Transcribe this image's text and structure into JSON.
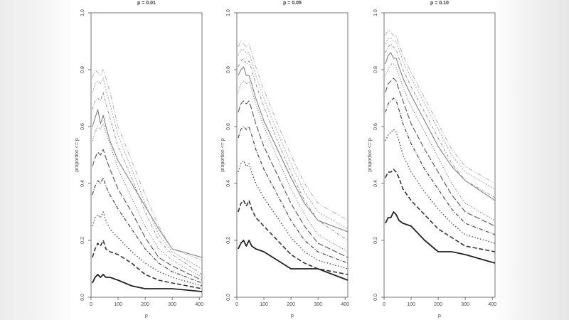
{
  "chart_data": [
    {
      "type": "line",
      "title": "p = 0.01",
      "xlabel": "p",
      "ylabel": "proportion <= p",
      "xlim": [
        0,
        410
      ],
      "ylim": [
        0,
        1
      ],
      "xticks": [
        "0",
        "100",
        "200",
        "300",
        "400"
      ],
      "yticks": [
        "0.0",
        "0.2",
        "0.4",
        "0.6",
        "0.8",
        "1.0"
      ],
      "grid": false,
      "series": [
        {
          "x": [
            5,
            15,
            25,
            35,
            45,
            55,
            70,
            100,
            150,
            200,
            250,
            300,
            410
          ],
          "y": [
            0.05,
            0.07,
            0.08,
            0.07,
            0.08,
            0.07,
            0.07,
            0.06,
            0.04,
            0.03,
            0.03,
            0.03,
            0.02
          ]
        },
        {
          "x": [
            5,
            15,
            25,
            35,
            45,
            55,
            70,
            100,
            150,
            200,
            250,
            300,
            410
          ],
          "y": [
            0.14,
            0.17,
            0.19,
            0.18,
            0.2,
            0.17,
            0.16,
            0.15,
            0.12,
            0.08,
            0.06,
            0.05,
            0.03
          ]
        },
        {
          "x": [
            5,
            15,
            25,
            35,
            45,
            55,
            70,
            100,
            150,
            200,
            250,
            300,
            410
          ],
          "y": [
            0.25,
            0.28,
            0.29,
            0.28,
            0.3,
            0.27,
            0.24,
            0.21,
            0.16,
            0.12,
            0.09,
            0.07,
            0.04
          ]
        },
        {
          "x": [
            5,
            15,
            25,
            35,
            45,
            55,
            70,
            100,
            150,
            200,
            250,
            300,
            410
          ],
          "y": [
            0.36,
            0.39,
            0.41,
            0.4,
            0.42,
            0.39,
            0.36,
            0.31,
            0.24,
            0.17,
            0.12,
            0.09,
            0.05
          ]
        },
        {
          "x": [
            5,
            15,
            25,
            35,
            45,
            55,
            70,
            100,
            150,
            200,
            250,
            300,
            410
          ],
          "y": [
            0.46,
            0.49,
            0.51,
            0.5,
            0.52,
            0.49,
            0.45,
            0.38,
            0.3,
            0.21,
            0.14,
            0.11,
            0.06
          ]
        },
        {
          "x": [
            5,
            15,
            25,
            35,
            45,
            55,
            70,
            100,
            150,
            200,
            250,
            300,
            410
          ],
          "y": [
            0.55,
            0.58,
            0.6,
            0.59,
            0.61,
            0.58,
            0.54,
            0.45,
            0.35,
            0.25,
            0.17,
            0.13,
            0.07
          ]
        },
        {
          "x": [
            5,
            15,
            25,
            35,
            45,
            55,
            70,
            100,
            150,
            200,
            250,
            300,
            410
          ],
          "y": [
            0.6,
            0.63,
            0.66,
            0.61,
            0.64,
            0.6,
            0.55,
            0.48,
            0.4,
            0.32,
            0.24,
            0.17,
            0.14
          ]
        },
        {
          "x": [
            5,
            15,
            25,
            35,
            45,
            55,
            70,
            100,
            150,
            200,
            250,
            300,
            410
          ],
          "y": [
            0.66,
            0.69,
            0.7,
            0.69,
            0.72,
            0.68,
            0.63,
            0.53,
            0.42,
            0.3,
            0.2,
            0.15,
            0.08
          ]
        },
        {
          "x": [
            5,
            15,
            25,
            35,
            45,
            55,
            70,
            100,
            150,
            200,
            250,
            300,
            410
          ],
          "y": [
            0.72,
            0.75,
            0.76,
            0.75,
            0.77,
            0.73,
            0.68,
            0.57,
            0.45,
            0.33,
            0.22,
            0.16,
            0.1
          ]
        },
        {
          "x": [
            5,
            15,
            25,
            35,
            45,
            55,
            70,
            100,
            150,
            200,
            250,
            300,
            410
          ],
          "y": [
            0.77,
            0.8,
            0.79,
            0.78,
            0.8,
            0.77,
            0.72,
            0.6,
            0.48,
            0.36,
            0.25,
            0.17,
            0.13
          ]
        }
      ]
    },
    {
      "type": "line",
      "title": "p = 0.05",
      "xlabel": "p",
      "ylabel": "proportion <= p",
      "xlim": [
        0,
        410
      ],
      "ylim": [
        0,
        1
      ],
      "xticks": [
        "0",
        "100",
        "200",
        "300",
        "400"
      ],
      "yticks": [
        "0.0",
        "0.2",
        "0.4",
        "0.6",
        "0.8",
        "1.0"
      ],
      "grid": false,
      "series": [
        {
          "x": [
            5,
            15,
            25,
            35,
            45,
            55,
            70,
            100,
            150,
            200,
            250,
            300,
            410
          ],
          "y": [
            0.17,
            0.19,
            0.2,
            0.18,
            0.2,
            0.18,
            0.17,
            0.16,
            0.13,
            0.1,
            0.1,
            0.1,
            0.06
          ]
        },
        {
          "x": [
            5,
            15,
            25,
            35,
            45,
            55,
            70,
            100,
            150,
            200,
            250,
            300,
            410
          ],
          "y": [
            0.3,
            0.33,
            0.34,
            0.32,
            0.34,
            0.31,
            0.28,
            0.25,
            0.2,
            0.15,
            0.12,
            0.1,
            0.08
          ]
        },
        {
          "x": [
            5,
            15,
            25,
            35,
            45,
            55,
            70,
            100,
            150,
            200,
            250,
            300,
            410
          ],
          "y": [
            0.44,
            0.47,
            0.48,
            0.46,
            0.47,
            0.44,
            0.4,
            0.35,
            0.28,
            0.21,
            0.16,
            0.13,
            0.1
          ]
        },
        {
          "x": [
            5,
            15,
            25,
            35,
            45,
            55,
            70,
            100,
            150,
            200,
            250,
            300,
            410
          ],
          "y": [
            0.56,
            0.59,
            0.6,
            0.59,
            0.6,
            0.57,
            0.52,
            0.45,
            0.36,
            0.27,
            0.2,
            0.16,
            0.12
          ]
        },
        {
          "x": [
            5,
            15,
            25,
            35,
            45,
            55,
            70,
            100,
            150,
            200,
            250,
            300,
            410
          ],
          "y": [
            0.65,
            0.68,
            0.69,
            0.68,
            0.69,
            0.66,
            0.61,
            0.53,
            0.43,
            0.33,
            0.25,
            0.19,
            0.14
          ]
        },
        {
          "x": [
            5,
            15,
            25,
            35,
            45,
            55,
            70,
            100,
            150,
            200,
            250,
            300,
            410
          ],
          "y": [
            0.72,
            0.75,
            0.76,
            0.75,
            0.76,
            0.73,
            0.68,
            0.6,
            0.49,
            0.38,
            0.29,
            0.22,
            0.16
          ]
        },
        {
          "x": [
            5,
            15,
            25,
            35,
            45,
            55,
            70,
            100,
            150,
            200,
            250,
            300,
            410
          ],
          "y": [
            0.78,
            0.8,
            0.81,
            0.78,
            0.78,
            0.75,
            0.7,
            0.62,
            0.52,
            0.42,
            0.33,
            0.27,
            0.23
          ]
        },
        {
          "x": [
            5,
            15,
            25,
            35,
            45,
            55,
            70,
            100,
            150,
            200,
            250,
            300,
            410
          ],
          "y": [
            0.81,
            0.83,
            0.84,
            0.82,
            0.83,
            0.8,
            0.75,
            0.67,
            0.55,
            0.44,
            0.34,
            0.27,
            0.2
          ]
        },
        {
          "x": [
            5,
            15,
            25,
            35,
            45,
            55,
            70,
            100,
            150,
            200,
            250,
            300,
            410
          ],
          "y": [
            0.85,
            0.87,
            0.87,
            0.86,
            0.86,
            0.83,
            0.78,
            0.7,
            0.58,
            0.47,
            0.37,
            0.3,
            0.24
          ]
        },
        {
          "x": [
            5,
            15,
            25,
            35,
            45,
            55,
            70,
            100,
            150,
            200,
            250,
            300,
            410
          ],
          "y": [
            0.88,
            0.9,
            0.89,
            0.88,
            0.89,
            0.86,
            0.81,
            0.73,
            0.61,
            0.5,
            0.4,
            0.33,
            0.27
          ]
        }
      ]
    },
    {
      "type": "line",
      "title": "p = 0.10",
      "xlabel": "p",
      "ylabel": "proportion <= p",
      "xlim": [
        0,
        410
      ],
      "ylim": [
        0,
        1
      ],
      "xticks": [
        "0",
        "100",
        "200",
        "300",
        "400"
      ],
      "yticks": [
        "0.0",
        "0.2",
        "0.4",
        "0.6",
        "0.8",
        "1.0"
      ],
      "grid": false,
      "series": [
        {
          "x": [
            5,
            15,
            25,
            35,
            45,
            55,
            70,
            100,
            150,
            200,
            250,
            300,
            410
          ],
          "y": [
            0.26,
            0.28,
            0.28,
            0.3,
            0.29,
            0.27,
            0.26,
            0.25,
            0.2,
            0.16,
            0.16,
            0.15,
            0.12
          ]
        },
        {
          "x": [
            5,
            15,
            25,
            35,
            45,
            55,
            70,
            100,
            150,
            200,
            250,
            300,
            410
          ],
          "y": [
            0.42,
            0.44,
            0.44,
            0.45,
            0.44,
            0.42,
            0.38,
            0.34,
            0.29,
            0.24,
            0.21,
            0.18,
            0.16
          ]
        },
        {
          "x": [
            5,
            15,
            25,
            35,
            45,
            55,
            70,
            100,
            150,
            200,
            250,
            300,
            410
          ],
          "y": [
            0.55,
            0.57,
            0.58,
            0.59,
            0.58,
            0.55,
            0.5,
            0.44,
            0.37,
            0.31,
            0.26,
            0.22,
            0.19
          ]
        },
        {
          "x": [
            5,
            15,
            25,
            35,
            45,
            55,
            70,
            100,
            150,
            200,
            250,
            300,
            410
          ],
          "y": [
            0.65,
            0.68,
            0.69,
            0.7,
            0.69,
            0.66,
            0.61,
            0.54,
            0.45,
            0.38,
            0.31,
            0.26,
            0.22
          ]
        },
        {
          "x": [
            5,
            15,
            25,
            35,
            45,
            55,
            70,
            100,
            150,
            200,
            250,
            300,
            410
          ],
          "y": [
            0.72,
            0.75,
            0.76,
            0.77,
            0.76,
            0.73,
            0.69,
            0.61,
            0.52,
            0.44,
            0.36,
            0.3,
            0.25
          ]
        },
        {
          "x": [
            5,
            15,
            25,
            35,
            45,
            55,
            70,
            100,
            150,
            200,
            250,
            300,
            410
          ],
          "y": [
            0.78,
            0.8,
            0.82,
            0.82,
            0.81,
            0.78,
            0.74,
            0.67,
            0.58,
            0.49,
            0.4,
            0.33,
            0.27
          ]
        },
        {
          "x": [
            5,
            15,
            25,
            35,
            45,
            55,
            70,
            100,
            150,
            200,
            250,
            300,
            410
          ],
          "y": [
            0.82,
            0.85,
            0.86,
            0.84,
            0.84,
            0.81,
            0.77,
            0.71,
            0.62,
            0.53,
            0.46,
            0.41,
            0.34
          ]
        },
        {
          "x": [
            5,
            15,
            25,
            35,
            45,
            55,
            70,
            100,
            150,
            200,
            250,
            300,
            410
          ],
          "y": [
            0.86,
            0.88,
            0.89,
            0.88,
            0.87,
            0.84,
            0.8,
            0.74,
            0.65,
            0.56,
            0.47,
            0.41,
            0.35
          ]
        },
        {
          "x": [
            5,
            15,
            25,
            35,
            45,
            55,
            70,
            100,
            150,
            200,
            250,
            300,
            410
          ],
          "y": [
            0.89,
            0.91,
            0.91,
            0.9,
            0.9,
            0.87,
            0.83,
            0.77,
            0.68,
            0.59,
            0.5,
            0.44,
            0.38
          ]
        },
        {
          "x": [
            5,
            15,
            25,
            35,
            45,
            55,
            70,
            100,
            150,
            200,
            250,
            300,
            410
          ],
          "y": [
            0.92,
            0.94,
            0.93,
            0.92,
            0.92,
            0.89,
            0.85,
            0.79,
            0.7,
            0.61,
            0.52,
            0.46,
            0.4
          ]
        }
      ]
    }
  ]
}
